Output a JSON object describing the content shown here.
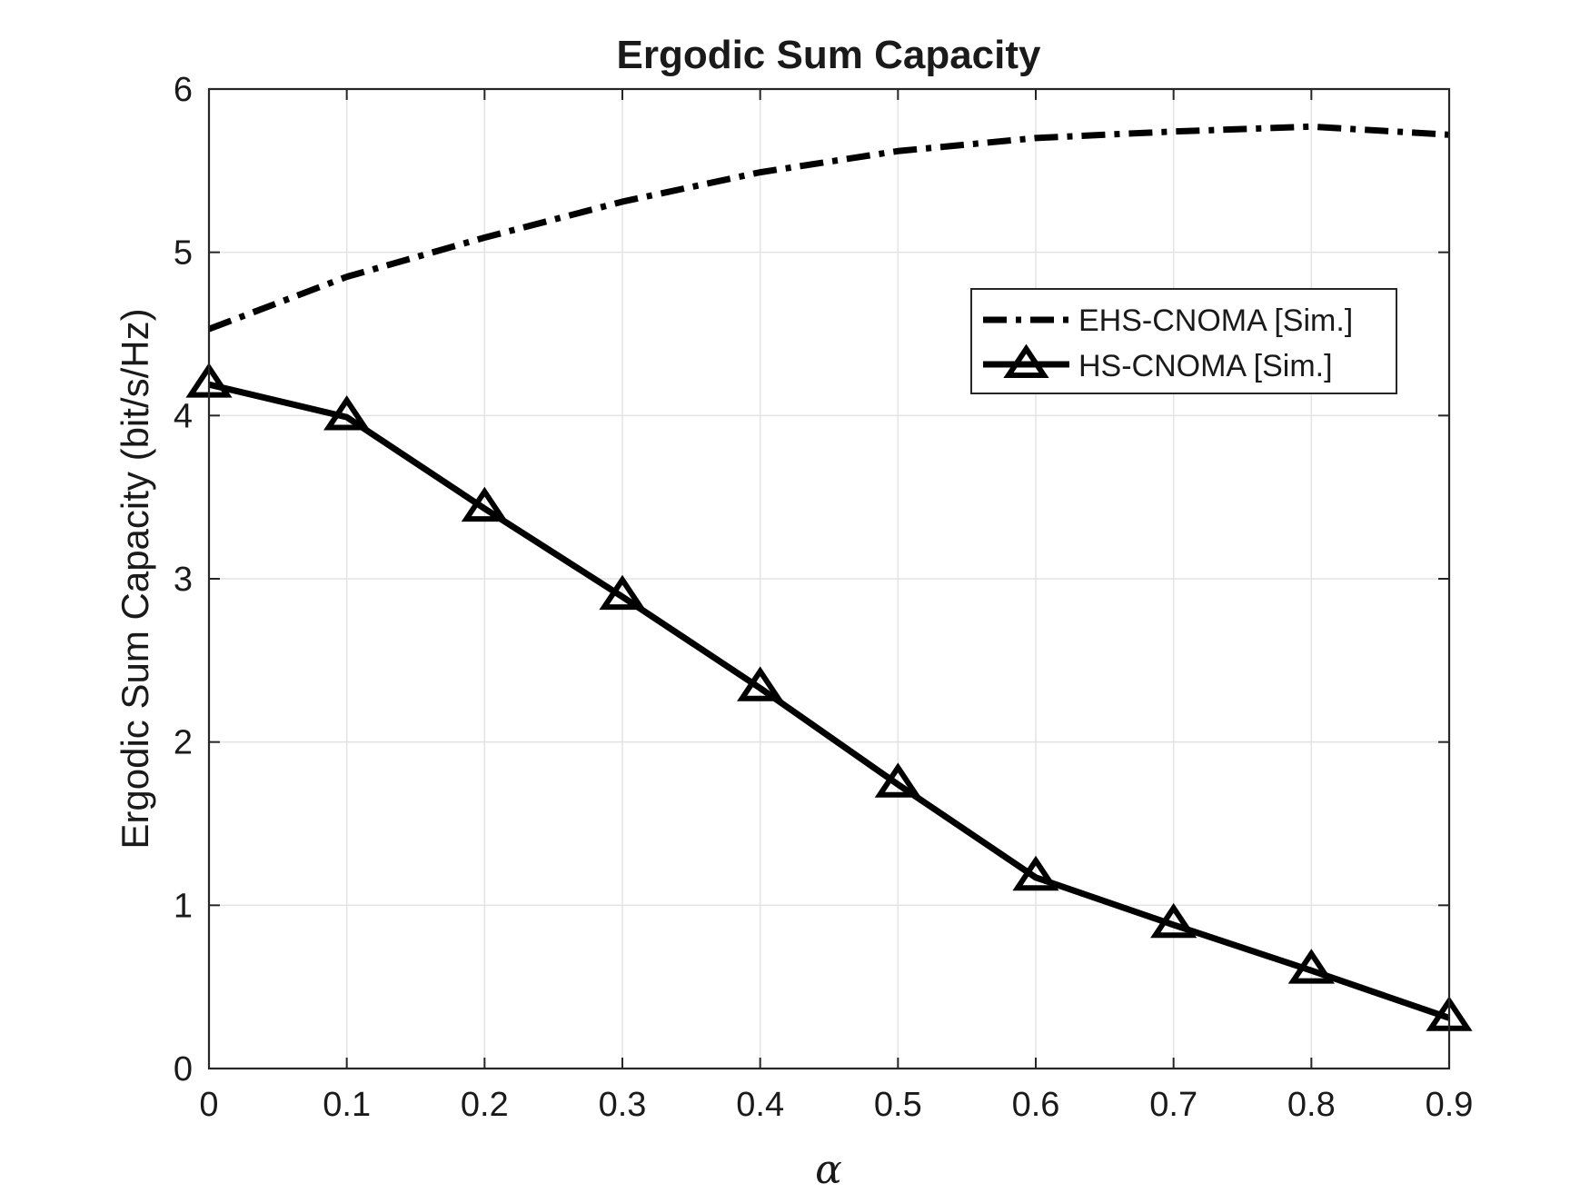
{
  "chart_data": {
    "type": "line",
    "title": "Ergodic Sum Capacity",
    "xlabel": "α",
    "ylabel": "Ergodic Sum Capacity (bit/s/Hz)",
    "x": [
      0,
      0.1,
      0.2,
      0.3,
      0.4,
      0.5,
      0.6,
      0.7,
      0.8,
      0.9
    ],
    "xlim": [
      0,
      0.9
    ],
    "ylim": [
      0,
      6
    ],
    "xticks": [
      "0",
      "0.1",
      "0.2",
      "0.3",
      "0.4",
      "0.5",
      "0.6",
      "0.7",
      "0.8",
      "0.9"
    ],
    "yticks": [
      "0",
      "1",
      "2",
      "3",
      "4",
      "5",
      "6"
    ],
    "grid": true,
    "legend_position": "upper-right",
    "series": [
      {
        "name": "EHS-CNOMA [Sim.]",
        "values": [
          4.53,
          4.85,
          5.09,
          5.31,
          5.49,
          5.62,
          5.7,
          5.74,
          5.77,
          5.72
        ],
        "line_style": "dash-dot",
        "marker": "none",
        "color": "#000000"
      },
      {
        "name": "HS-CNOMA [Sim.]",
        "values": [
          4.19,
          3.99,
          3.43,
          2.89,
          2.33,
          1.74,
          1.17,
          0.88,
          0.6,
          0.31
        ],
        "line_style": "solid",
        "marker": "triangle",
        "color": "#000000"
      }
    ]
  }
}
